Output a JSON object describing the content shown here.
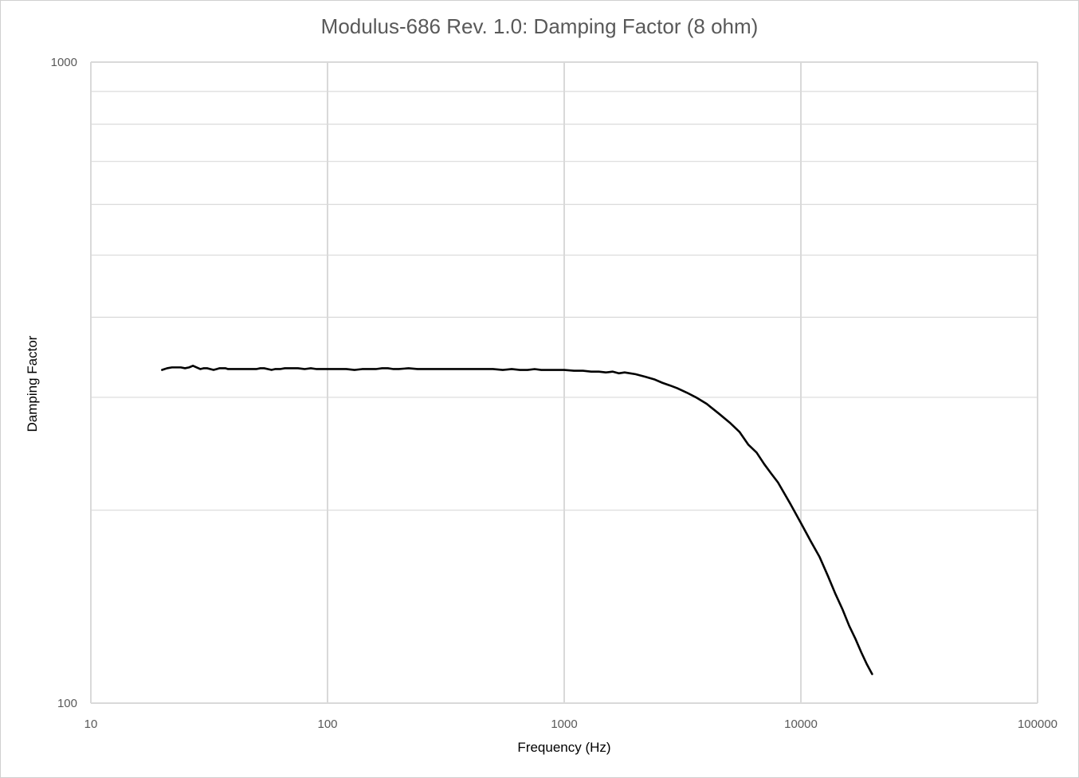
{
  "chart_data": {
    "type": "line",
    "title": "Modulus-686 Rev. 1.0: Damping Factor (8 ohm)",
    "xlabel": "Frequency (Hz)",
    "ylabel": "Damping Factor",
    "xscale": "log",
    "yscale": "log",
    "xlim": [
      10,
      100000
    ],
    "ylim": [
      100,
      1000
    ],
    "x_ticks": [
      "10",
      "100",
      "1000",
      "10000",
      "100000"
    ],
    "y_ticks": [
      "100",
      "1000"
    ],
    "grid": true,
    "legend": "none",
    "line_color": "#000000",
    "grid_color": "#d9d9d9",
    "series": [
      {
        "x": [
          20,
          21,
          22,
          23,
          24,
          25,
          26,
          27,
          28,
          29,
          30,
          31,
          32,
          33,
          34,
          35,
          36,
          37,
          38,
          40,
          42,
          44,
          46,
          48,
          50,
          52,
          54,
          56,
          58,
          60,
          63,
          66,
          70,
          75,
          80,
          85,
          90,
          95,
          100,
          110,
          120,
          130,
          140,
          150,
          160,
          170,
          180,
          190,
          200,
          220,
          240,
          260,
          280,
          300,
          330,
          360,
          400,
          450,
          500,
          550,
          600,
          650,
          700,
          750,
          800,
          900,
          1000,
          1100,
          1200,
          1300,
          1400,
          1500,
          1600,
          1700,
          1800,
          1900,
          2000,
          2200,
          2400,
          2600,
          2800,
          3000,
          3300,
          3600,
          4000,
          4500,
          5000,
          5500,
          6000,
          6500,
          7000,
          7500,
          8000,
          9000,
          10000,
          11000,
          12000,
          13000,
          14000,
          15000,
          16000,
          17000,
          18000,
          19000,
          20000
        ],
        "y": [
          331,
          333,
          334,
          334,
          334,
          333,
          334,
          336,
          334,
          332,
          333,
          333,
          332,
          331,
          332,
          333,
          333,
          333,
          332,
          332,
          332,
          332,
          332,
          332,
          332,
          333,
          333,
          332,
          331,
          332,
          332,
          333,
          333,
          333,
          332,
          333,
          332,
          332,
          332,
          332,
          332,
          331,
          332,
          332,
          332,
          333,
          333,
          332,
          332,
          333,
          332,
          332,
          332,
          332,
          332,
          332,
          332,
          332,
          332,
          331,
          332,
          331,
          331,
          332,
          331,
          331,
          331,
          330,
          330,
          329,
          329,
          328,
          329,
          327,
          328,
          327,
          326,
          323,
          320,
          316,
          313,
          310,
          305,
          300,
          293,
          283,
          274,
          265,
          253,
          246,
          236,
          228,
          221,
          205,
          191,
          179,
          169,
          158,
          148,
          140,
          132,
          126,
          120,
          115,
          111
        ]
      }
    ]
  }
}
